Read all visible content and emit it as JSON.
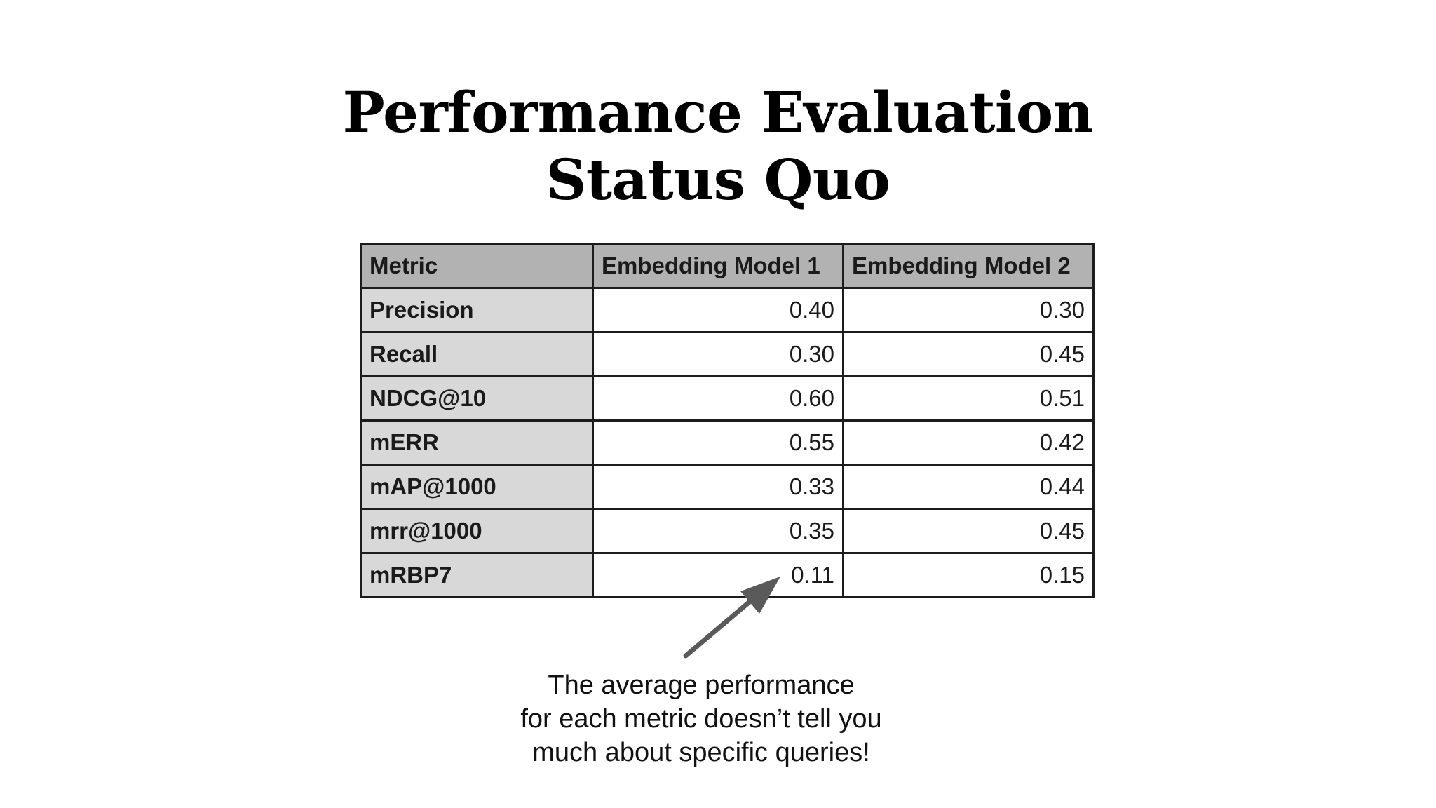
{
  "title": {
    "line1": "Performance Evaluation",
    "line2": "Status Quo"
  },
  "table": {
    "headers": [
      "Metric",
      "Embedding Model 1",
      "Embedding Model 2"
    ],
    "rows": [
      {
        "metric": "Precision",
        "model1": "0.40",
        "model2": "0.30"
      },
      {
        "metric": "Recall",
        "model1": "0.30",
        "model2": "0.45"
      },
      {
        "metric": "NDCG@10",
        "model1": "0.60",
        "model2": "0.51"
      },
      {
        "metric": "mERR",
        "model1": "0.55",
        "model2": "0.42"
      },
      {
        "metric": "mAP@1000",
        "model1": "0.33",
        "model2": "0.44"
      },
      {
        "metric": "mrr@1000",
        "model1": "0.35",
        "model2": "0.45"
      },
      {
        "metric": "mRBP7",
        "model1": "0.11",
        "model2": "0.15"
      }
    ]
  },
  "annotation": {
    "line1": "The average performance",
    "line2": "for each metric doesn’t tell you",
    "line3": "much about specific queries!"
  },
  "colors": {
    "header_bg": "#b2b2b2",
    "metric_col_bg": "#d8d8d8",
    "arrow": "#5a5a5a"
  }
}
